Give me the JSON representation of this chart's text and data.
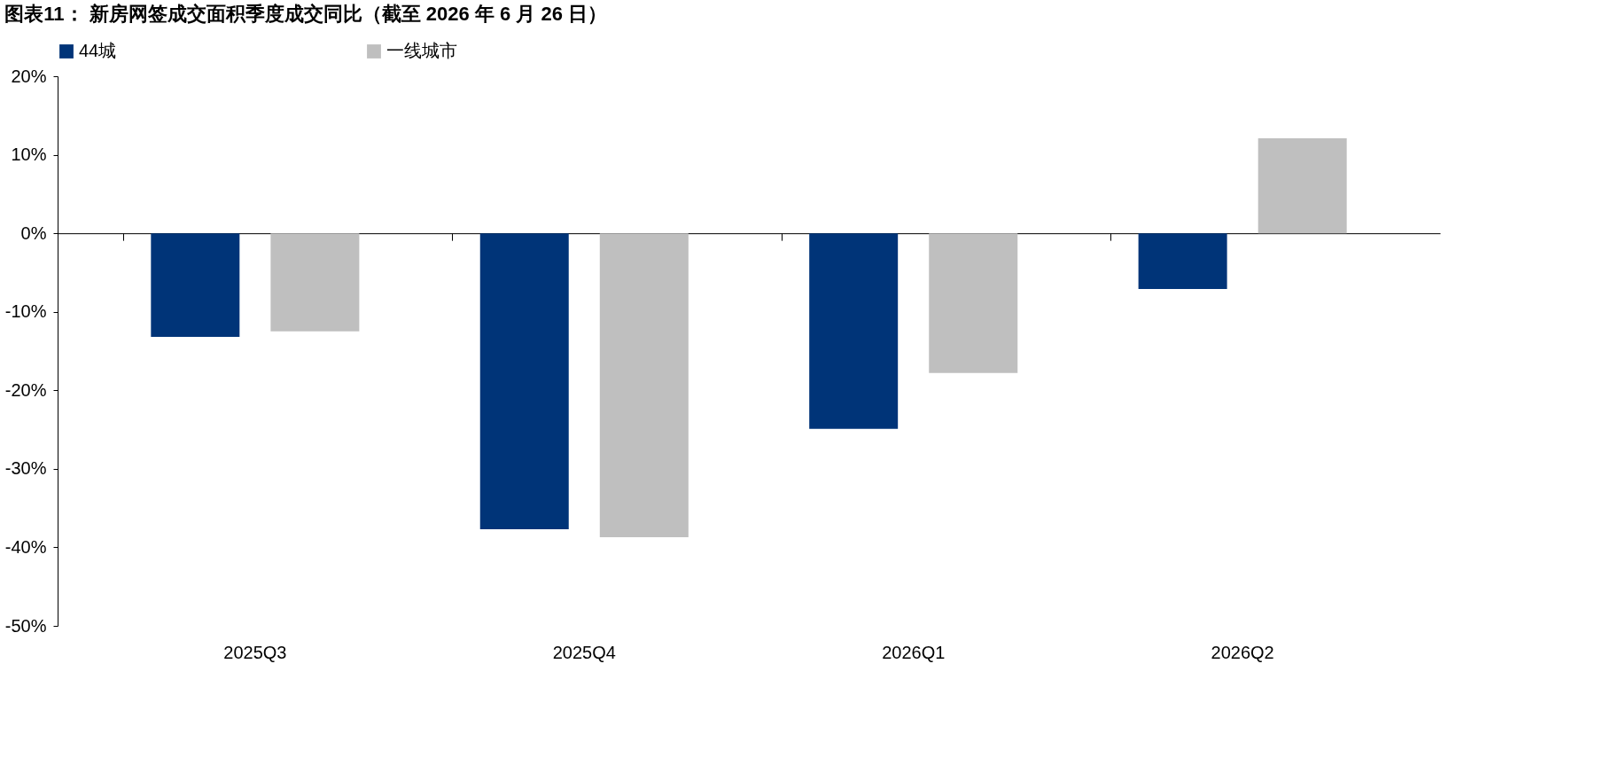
{
  "chart_data": {
    "type": "bar",
    "title": "图表11： 新房网签成交面积季度成交同比（截至 2026 年 6 月 26 日）",
    "categories": [
      "2025Q3",
      "2025Q4",
      "2026Q1",
      "2026Q2"
    ],
    "series": [
      {
        "name": "44城",
        "color": "#003478",
        "values": [
          -13.2,
          -37.7,
          -24.9,
          -7.1
        ]
      },
      {
        "name": "一线城市",
        "color": "#bfbfbf",
        "values": [
          -12.5,
          -38.7,
          -17.8,
          12.1
        ]
      }
    ],
    "ylim": [
      -50,
      20
    ],
    "yticks": [
      {
        "value": -50,
        "label": "-50%"
      },
      {
        "value": -40,
        "label": "-40%"
      },
      {
        "value": -30,
        "label": "-30%"
      },
      {
        "value": -20,
        "label": "-20%"
      },
      {
        "value": -10,
        "label": "-10%"
      },
      {
        "value": 0,
        "label": "0%"
      },
      {
        "value": 10,
        "label": "10%"
      },
      {
        "value": 20,
        "label": "20%"
      }
    ],
    "legend": "top"
  }
}
